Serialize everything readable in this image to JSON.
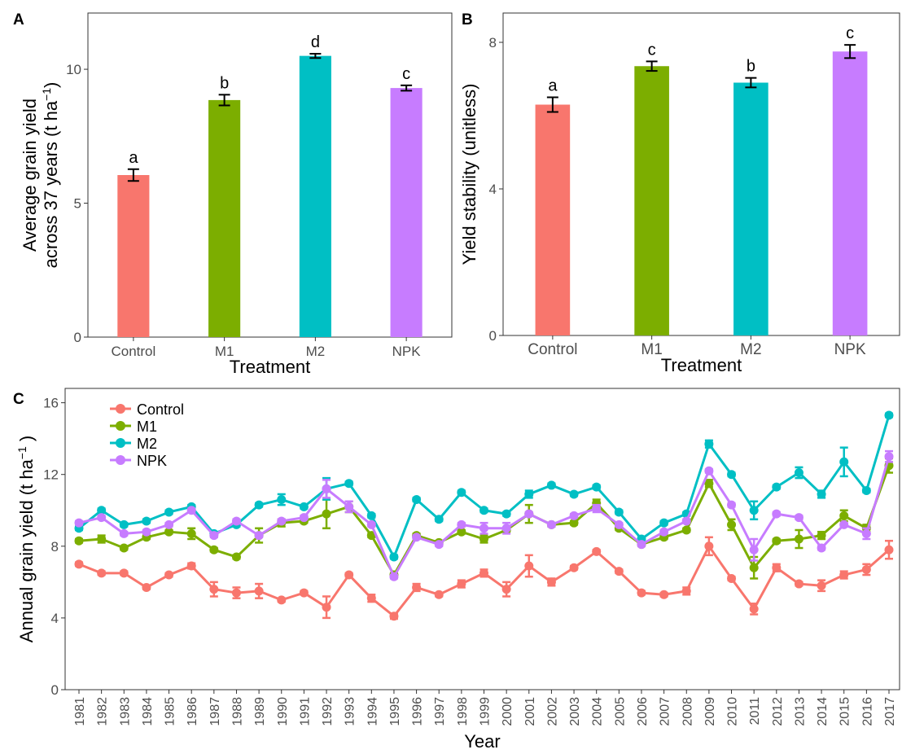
{
  "colors": {
    "Control": "#F8766D",
    "M1": "#7CAE00",
    "M2": "#00BFC4",
    "NPK": "#C77CFF",
    "axis": "#333333",
    "frame": "#333333",
    "tick_text": "#4d4d4d"
  },
  "chart_data": [
    {
      "panel": "A",
      "type": "bar",
      "categories": [
        "Control",
        "M1",
        "M2",
        "NPK"
      ],
      "values": [
        6.05,
        8.85,
        10.5,
        9.3
      ],
      "errors": [
        0.22,
        0.2,
        0.08,
        0.1
      ],
      "letters": [
        "a",
        "b",
        "d",
        "c"
      ],
      "xlabel": "Treatment",
      "ylabel_line1": "Average grain yield",
      "ylabel_line2": "across 37 years (t ha",
      "ylabel_sup": "−1",
      "ylabel_close": ")",
      "ylim": [
        0,
        12.1
      ],
      "yticks": [
        0,
        5,
        10
      ],
      "grid": false
    },
    {
      "panel": "B",
      "type": "bar",
      "categories": [
        "Control",
        "M1",
        "M2",
        "NPK"
      ],
      "values": [
        6.3,
        7.35,
        6.9,
        7.75
      ],
      "errors": [
        0.2,
        0.13,
        0.13,
        0.18
      ],
      "letters": [
        "a",
        "c",
        "b",
        "c"
      ],
      "xlabel": "Treatment",
      "ylabel": "Yield stability (unitless)",
      "ylim": [
        0,
        8.8
      ],
      "yticks": [
        0,
        4,
        8
      ],
      "grid": false
    },
    {
      "panel": "C",
      "type": "line",
      "x": [
        1981,
        1982,
        1983,
        1984,
        1985,
        1986,
        1987,
        1988,
        1989,
        1990,
        1991,
        1992,
        1993,
        1994,
        1995,
        1996,
        1997,
        1998,
        1999,
        2000,
        2001,
        2002,
        2003,
        2004,
        2005,
        2006,
        2007,
        2008,
        2009,
        2010,
        2011,
        2012,
        2013,
        2014,
        2015,
        2016,
        2017
      ],
      "series": [
        {
          "name": "Control",
          "values": [
            7.0,
            6.5,
            6.5,
            5.7,
            6.4,
            6.9,
            5.6,
            5.4,
            5.5,
            5.0,
            5.4,
            4.6,
            6.4,
            5.1,
            4.1,
            5.7,
            5.3,
            5.9,
            6.5,
            5.6,
            6.9,
            6.0,
            6.8,
            7.7,
            6.6,
            5.4,
            5.3,
            5.5,
            8.0,
            6.2,
            4.5,
            6.8,
            5.9,
            5.8,
            6.4,
            6.7,
            7.8
          ],
          "errors": [
            0.1,
            0.1,
            0.1,
            0.1,
            0.1,
            0.15,
            0.4,
            0.3,
            0.4,
            0.1,
            0.1,
            0.6,
            0.1,
            0.2,
            0.15,
            0.2,
            0.1,
            0.2,
            0.2,
            0.4,
            0.6,
            0.2,
            0.1,
            0.1,
            0.1,
            0.1,
            0.1,
            0.2,
            0.5,
            0.1,
            0.3,
            0.2,
            0.1,
            0.3,
            0.2,
            0.3,
            0.5
          ]
        },
        {
          "name": "M1",
          "values": [
            8.3,
            8.4,
            7.9,
            8.5,
            8.8,
            8.7,
            7.8,
            7.4,
            8.6,
            9.3,
            9.4,
            9.8,
            10.2,
            8.6,
            6.4,
            8.6,
            8.2,
            8.8,
            8.4,
            8.9,
            9.8,
            9.2,
            9.3,
            10.4,
            9.0,
            8.1,
            8.5,
            8.9,
            11.5,
            9.2,
            6.8,
            8.3,
            8.4,
            8.6,
            9.7,
            9.0,
            12.5
          ],
          "errors": [
            0.1,
            0.2,
            0.1,
            0.1,
            0.1,
            0.3,
            0.1,
            0.1,
            0.4,
            0.2,
            0.1,
            0.8,
            0.3,
            0.1,
            0.1,
            0.1,
            0.1,
            0.1,
            0.2,
            0.1,
            0.5,
            0.1,
            0.1,
            0.2,
            0.1,
            0.1,
            0.1,
            0.1,
            0.2,
            0.3,
            0.6,
            0.1,
            0.5,
            0.2,
            0.3,
            0.2,
            0.4
          ]
        },
        {
          "name": "M2",
          "values": [
            9.0,
            10.0,
            9.2,
            9.4,
            9.9,
            10.2,
            8.7,
            9.2,
            10.3,
            10.6,
            10.2,
            11.2,
            11.5,
            9.7,
            7.4,
            10.6,
            9.5,
            11.0,
            10.0,
            9.8,
            10.9,
            11.4,
            10.9,
            11.3,
            9.9,
            8.4,
            9.3,
            9.8,
            13.7,
            12.0,
            10.0,
            11.3,
            12.1,
            10.9,
            12.7,
            11.1,
            15.3
          ],
          "errors": [
            0.1,
            0.1,
            0.1,
            0.1,
            0.1,
            0.1,
            0.1,
            0.1,
            0.1,
            0.3,
            0.1,
            0.6,
            0.1,
            0.1,
            0.1,
            0.1,
            0.1,
            0.1,
            0.1,
            0.1,
            0.2,
            0.1,
            0.1,
            0.1,
            0.1,
            0.1,
            0.1,
            0.1,
            0.2,
            0.1,
            0.5,
            0.1,
            0.3,
            0.2,
            0.8,
            0.1,
            0.1
          ]
        },
        {
          "name": "NPK",
          "values": [
            9.3,
            9.6,
            8.7,
            8.8,
            9.2,
            10.0,
            8.6,
            9.4,
            8.6,
            9.4,
            9.6,
            11.2,
            10.2,
            9.2,
            6.3,
            8.5,
            8.1,
            9.2,
            9.0,
            9.0,
            9.8,
            9.2,
            9.7,
            10.1,
            9.2,
            8.1,
            8.8,
            9.4,
            12.2,
            10.3,
            7.8,
            9.8,
            9.6,
            7.9,
            9.2,
            8.7,
            13.0
          ],
          "errors": [
            0.1,
            0.1,
            0.1,
            0.1,
            0.1,
            0.1,
            0.1,
            0.1,
            0.1,
            0.1,
            0.1,
            0.5,
            0.3,
            0.1,
            0.1,
            0.1,
            0.1,
            0.1,
            0.3,
            0.3,
            0.1,
            0.1,
            0.1,
            0.2,
            0.1,
            0.1,
            0.1,
            0.1,
            0.1,
            0.1,
            0.6,
            0.1,
            0.1,
            0.1,
            0.1,
            0.3,
            0.3
          ]
        }
      ],
      "xlabel": "Year",
      "ylabel_main": "Annual grain yield (t  ha",
      "ylabel_sup": "−1",
      "ylabel_close": " )",
      "ylim": [
        0,
        16.8
      ],
      "yticks": [
        0,
        4,
        8,
        12,
        16
      ],
      "legend_position": "top-left",
      "grid": false
    }
  ]
}
